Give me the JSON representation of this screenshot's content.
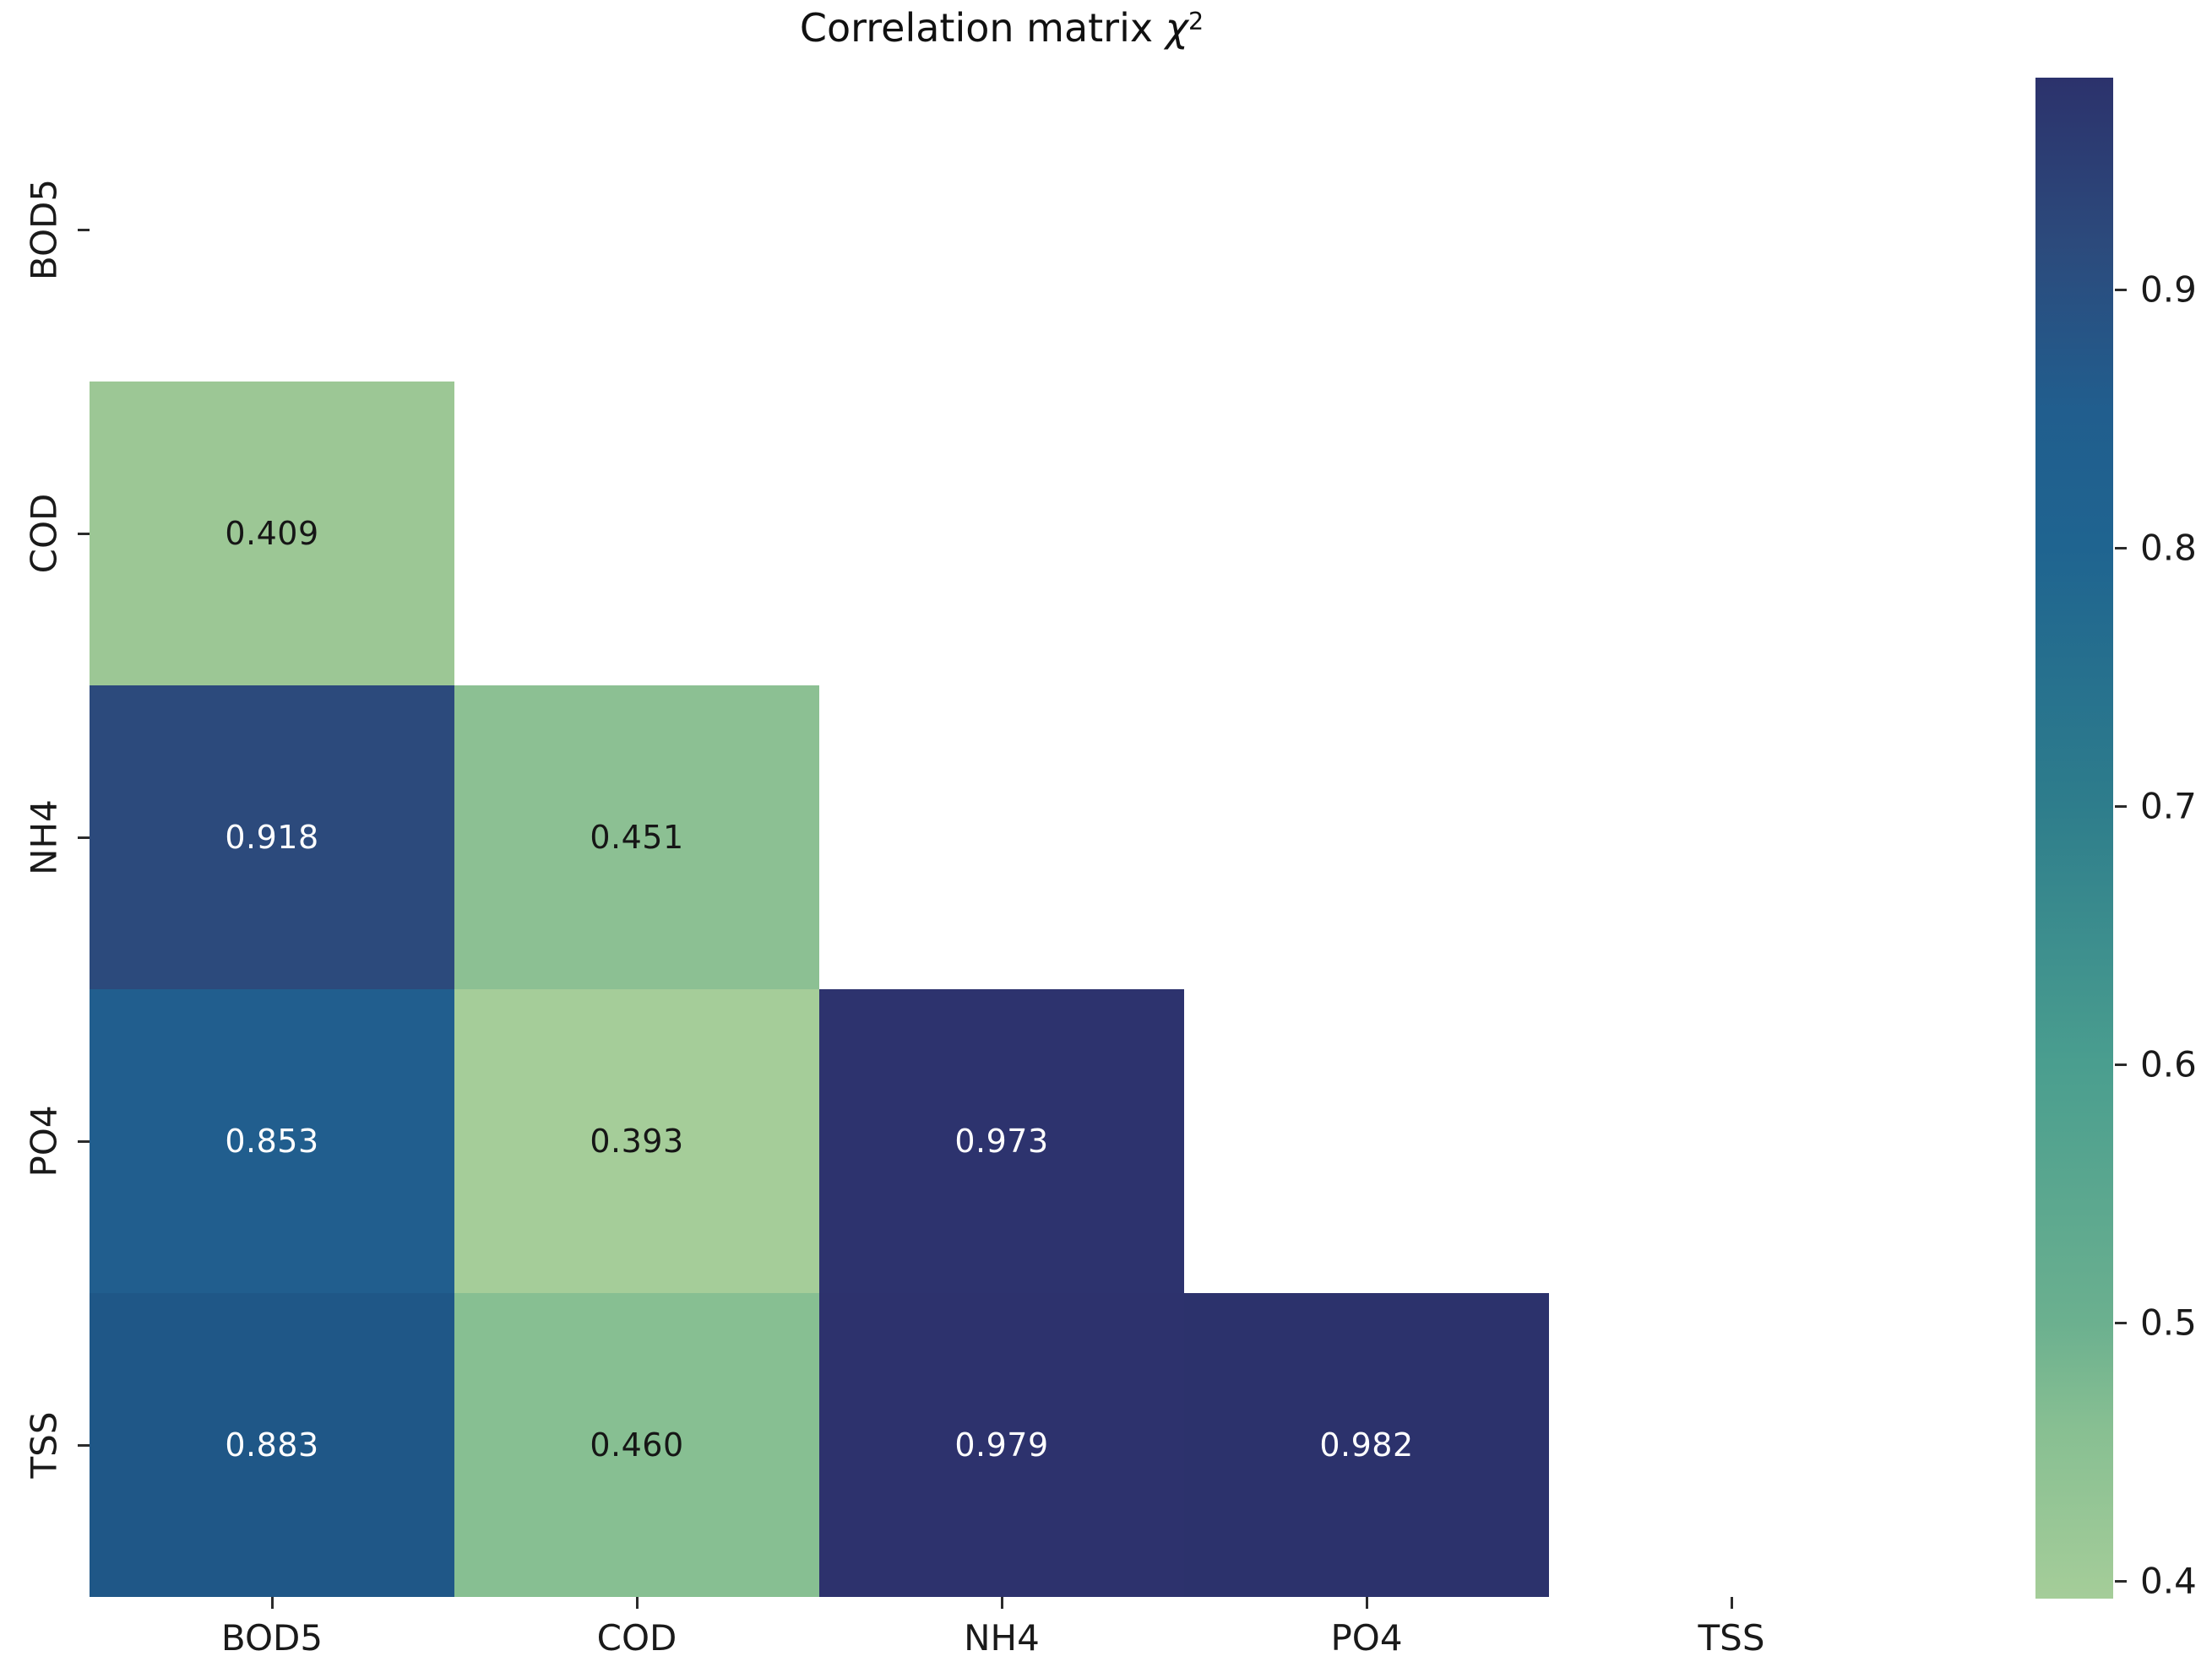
{
  "title": {
    "main": "Correlation matrix ",
    "chi": "χ",
    "superscript": "2"
  },
  "axes": {
    "x_labels": [
      "BOD5",
      "COD",
      "NH4",
      "PO4",
      "TSS"
    ],
    "y_labels": [
      "BOD5",
      "COD",
      "NH4",
      "PO4",
      "TSS"
    ]
  },
  "heatmap": {
    "cells": [
      {
        "row": 1,
        "col": 0,
        "value": "0.409",
        "bg": "#9cc795",
        "fg": "#161616"
      },
      {
        "row": 2,
        "col": 0,
        "value": "0.918",
        "bg": "#2c4a7c",
        "fg": "#ffffff"
      },
      {
        "row": 2,
        "col": 1,
        "value": "0.451",
        "bg": "#8cc093",
        "fg": "#161616"
      },
      {
        "row": 3,
        "col": 0,
        "value": "0.853",
        "bg": "#215e8e",
        "fg": "#ffffff"
      },
      {
        "row": 3,
        "col": 1,
        "value": "0.393",
        "bg": "#a5cd99",
        "fg": "#161616"
      },
      {
        "row": 3,
        "col": 2,
        "value": "0.973",
        "bg": "#2d336e",
        "fg": "#ffffff"
      },
      {
        "row": 4,
        "col": 0,
        "value": "0.883",
        "bg": "#1f5787",
        "fg": "#ffffff"
      },
      {
        "row": 4,
        "col": 1,
        "value": "0.460",
        "bg": "#87bf92",
        "fg": "#161616"
      },
      {
        "row": 4,
        "col": 2,
        "value": "0.979",
        "bg": "#2d326d",
        "fg": "#ffffff"
      },
      {
        "row": 4,
        "col": 3,
        "value": "0.982",
        "bg": "#2c326c",
        "fg": "#ffffff"
      }
    ]
  },
  "colorbar": {
    "vmin": 0.393,
    "vmax": 0.982,
    "ticks": [
      {
        "label": "0.9",
        "value": 0.9
      },
      {
        "label": "0.8",
        "value": 0.8
      },
      {
        "label": "0.7",
        "value": 0.7
      },
      {
        "label": "0.6",
        "value": 0.6
      },
      {
        "label": "0.5",
        "value": 0.5
      },
      {
        "label": "0.4",
        "value": 0.4
      }
    ],
    "stops": [
      {
        "value": 0.982,
        "color": "#2c326c"
      },
      {
        "value": 0.918,
        "color": "#2c4a7c"
      },
      {
        "value": 0.853,
        "color": "#215e8e"
      },
      {
        "value": 0.8,
        "color": "#1f6490"
      },
      {
        "value": 0.7,
        "color": "#2e7d8c"
      },
      {
        "value": 0.6,
        "color": "#4a9e8f"
      },
      {
        "value": 0.5,
        "color": "#6bb08f"
      },
      {
        "value": 0.46,
        "color": "#87bf92"
      },
      {
        "value": 0.393,
        "color": "#a5cd99"
      }
    ]
  },
  "chart_data": {
    "type": "heatmap",
    "title": "Correlation matrix χ²",
    "categories": [
      "BOD5",
      "COD",
      "NH4",
      "PO4",
      "TSS"
    ],
    "rows": [
      "BOD5",
      "COD",
      "NH4",
      "PO4",
      "TSS"
    ],
    "matrix": [
      [
        null,
        null,
        null,
        null,
        null
      ],
      [
        0.409,
        null,
        null,
        null,
        null
      ],
      [
        0.918,
        0.451,
        null,
        null,
        null
      ],
      [
        0.853,
        0.393,
        0.973,
        null,
        null
      ],
      [
        0.883,
        0.46,
        0.979,
        0.982,
        null
      ]
    ],
    "mask": "upper triangle including diagonal",
    "vmin": 0.393,
    "vmax": 0.982,
    "colorbar_ticks": [
      0.4,
      0.5,
      0.6,
      0.7,
      0.8,
      0.9
    ],
    "colormap": "crest (light green to dark navy)",
    "legend_position": "right colorbar",
    "grid": false,
    "annotations": true
  }
}
